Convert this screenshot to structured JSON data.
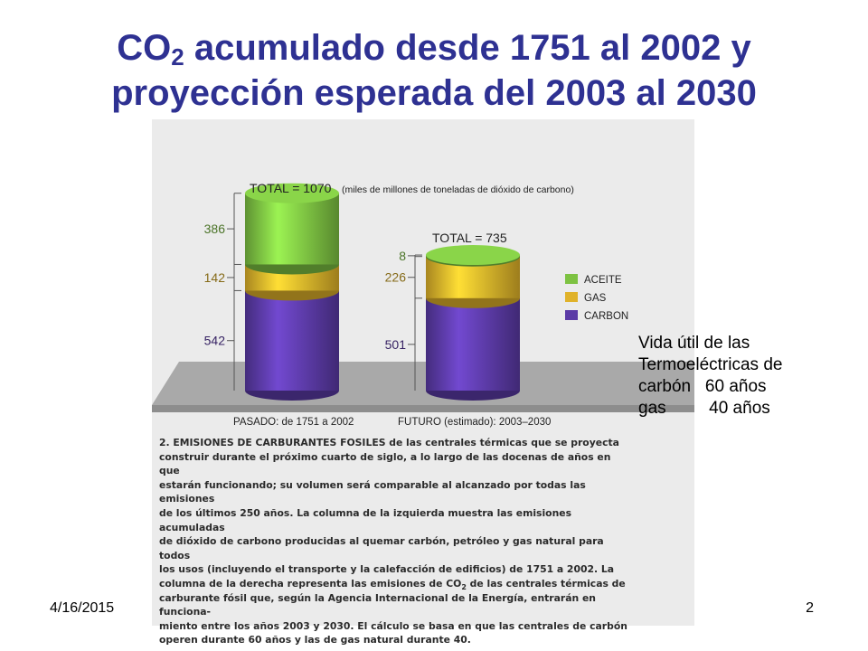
{
  "slide": {
    "title_line1_pre": "CO",
    "title_sub": "2",
    "title_line1_post": " acumulado desde 1751 al 2002 y",
    "title_line2": "proyección esperada del 2003 al 2030",
    "date": "4/16/2015",
    "page_number": "2"
  },
  "note": {
    "lines": [
      "Vida útil de las",
      "Termoeléctricas de",
      "carbón   60 años",
      "gas         40 años"
    ]
  },
  "chart_data": {
    "type": "bar",
    "stacked": true,
    "categories": [
      "PASADO: de 1751 a 2002",
      "FUTURO (estimado): 2003–2030"
    ],
    "series": [
      {
        "name": "CARBON",
        "values": [
          542,
          501
        ],
        "color": "#5b3aa6"
      },
      {
        "name": "GAS",
        "values": [
          142,
          226
        ],
        "color": "#e0b22a"
      },
      {
        "name": "ACEITE",
        "values": [
          386,
          8
        ],
        "color": "#7dc242"
      }
    ],
    "totals": [
      {
        "label": "TOTAL = 1070",
        "unit_note": "(miles de millones de toneladas de dióxido de carbono)"
      },
      {
        "label": "TOTAL = 735",
        "unit_note": ""
      }
    ],
    "legend_position": "right",
    "ylim": [
      0,
      1070
    ]
  },
  "caption": {
    "pre": "2. EMISIONES DE CARBURANTES FOSILES de las centrales térmicas que se proyecta\nconstruir durante el próximo cuarto de siglo, a lo largo de las docenas de años en que\nestarán funcionando; su volumen será comparable al alcanzado por todas las emisiones\nde los últimos 250 años. La columna de la izquierda muestra las emisiones acumuladas\nde dióxido de carbono producidas al quemar carbón, petróleo y gas natural para todos\nlos usos (incluyendo el transporte y la calefacción de edificios) de 1751 a 2002. La\ncolumna de la derecha representa las emisiones de CO",
    "sub": "2",
    "post": " de las centrales térmicas de\ncarburante fósil que, según la Agencia Internacional de la Energía, entrarán en funciona-\nmiento entre los años 2003 y 2030. El cálculo se basa en que las centrales de carbón\noperen durante 60 años y las de gas natural durante 40."
  }
}
